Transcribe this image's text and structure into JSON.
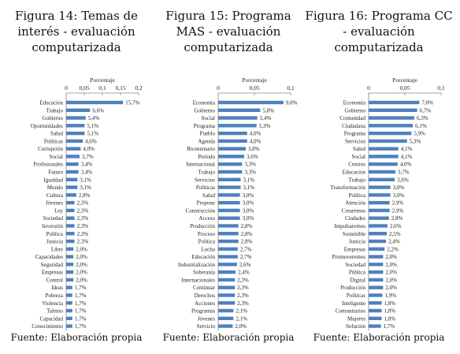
{
  "figures": [
    {
      "title": "Figura 14: Temas de interés - evaluación computarizada",
      "source": "Fuente: Elaboración propia",
      "chart_data": {
        "type": "bar",
        "orientation": "horizontal",
        "xlabel": "Porcentaje",
        "xlim": [
          0,
          0.2
        ],
        "xticks": [
          "0",
          "0,05",
          "0,1",
          "0,15",
          "0,2"
        ],
        "bar_color": "#4f81bd",
        "grid": false,
        "categories": [
          "Educación",
          "Trabajo",
          "Gobierno",
          "Oportunidades",
          "Salud",
          "Políticas",
          "Corrupción",
          "Social",
          "Profesionales",
          "Futuro",
          "Igualdad",
          "Mundo",
          "Cultura",
          "Jóvenes",
          "Ley",
          "Sociedad",
          "Inversión",
          "Política",
          "Justicia",
          "Libre",
          "Capacidades",
          "Seguridad",
          "Empresas",
          "Control",
          "Ideas",
          "Pobreza",
          "Violencia",
          "Talento",
          "Capacidad",
          "Conocimiento"
        ],
        "values": [
          0.157,
          0.066,
          0.054,
          0.051,
          0.051,
          0.046,
          0.04,
          0.037,
          0.034,
          0.034,
          0.031,
          0.031,
          0.028,
          0.023,
          0.023,
          0.023,
          0.023,
          0.023,
          0.023,
          0.02,
          0.02,
          0.02,
          0.02,
          0.02,
          0.017,
          0.017,
          0.017,
          0.017,
          0.017,
          0.017
        ],
        "labels": [
          "15,7%",
          "6,6%",
          "5,4%",
          "5,1%",
          "5,1%",
          "4,6%",
          "4,0%",
          "3,7%",
          "3,4%",
          "3,4%",
          "3,1%",
          "3,1%",
          "2,8%",
          "2,3%",
          "2,3%",
          "2,3%",
          "2,3%",
          "2,3%",
          "2,3%",
          "2,0%",
          "2,0%",
          "2,0%",
          "2,0%",
          "2,0%",
          "1,7%",
          "1,7%",
          "1,7%",
          "1,7%",
          "1,7%",
          "1,7%"
        ]
      }
    },
    {
      "title": "Figura 15: Programa MAS - evaluación computarizada",
      "source": "Fuente: Elaboración propia",
      "chart_data": {
        "type": "bar",
        "orientation": "horizontal",
        "xlabel": "Porcentaje",
        "xlim": [
          0,
          0.1
        ],
        "xticks": [
          "0",
          "0,05",
          "0,1"
        ],
        "bar_color": "#4f81bd",
        "grid": false,
        "categories": [
          "Economía",
          "Gobierno",
          "Social",
          "Programa",
          "Pueblo",
          "Agenda",
          "Bicentenario",
          "Período",
          "Internacional",
          "Trabajo",
          "Servicios",
          "Políticas",
          "Salud",
          "Propone",
          "Construcción",
          "Acceso",
          "Producción",
          "Proceso",
          "Política",
          "Lucha",
          "Educación",
          "Industrialización",
          "Soberanía",
          "Internacionales",
          "Continuar",
          "Derechos",
          "Acciones",
          "Programas",
          "Jóvenes",
          "Servicio"
        ],
        "values": [
          0.09,
          0.058,
          0.054,
          0.053,
          0.04,
          0.04,
          0.038,
          0.036,
          0.033,
          0.033,
          0.031,
          0.031,
          0.03,
          0.03,
          0.03,
          0.03,
          0.028,
          0.028,
          0.028,
          0.027,
          0.027,
          0.026,
          0.024,
          0.023,
          0.023,
          0.023,
          0.023,
          0.021,
          0.021,
          0.02
        ],
        "labels": [
          "9,0%",
          "5,8%",
          "5,4%",
          "5,3%",
          "4,0%",
          "4,0%",
          "3,8%",
          "3,6%",
          "3,3%",
          "3,3%",
          "3,1%",
          "3,1%",
          "3,0%",
          "3,0%",
          "3,0%",
          "3,0%",
          "2,8%",
          "2,8%",
          "2,8%",
          "2,7%",
          "2,7%",
          "2,6%",
          "2,4%",
          "2,3%",
          "2,3%",
          "2,3%",
          "2,3%",
          "2,1%",
          "2,1%",
          "2,0%"
        ]
      }
    },
    {
      "title": "Figura 16: Programa CC - evaluación computarizada",
      "source": "Fuente: Elaboración propia",
      "chart_data": {
        "type": "bar",
        "orientation": "horizontal",
        "xlabel": "Porcentaje",
        "xlim": [
          0,
          0.1
        ],
        "xticks": [
          "0",
          "0,05",
          "0,1"
        ],
        "bar_color": "#4f81bd",
        "grid": false,
        "categories": [
          "Economía",
          "Gobierno",
          "Comunidad",
          "Ciudadana",
          "Programa",
          "Servicios",
          "Salud",
          "Social",
          "Centros",
          "Educación",
          "Trabajo",
          "Transformación",
          "Política",
          "Atención",
          "Crearemos",
          "Ciudades",
          "Impulsaremos",
          "Sostenible",
          "Justicia",
          "Empresas",
          "Promoveremos",
          "Sociedad",
          "Pública",
          "Digital",
          "Producción",
          "Políticas",
          "Inteligente",
          "Comunitarios",
          "Mujeres",
          "Solución"
        ],
        "values": [
          0.07,
          0.067,
          0.063,
          0.061,
          0.059,
          0.053,
          0.041,
          0.041,
          0.04,
          0.037,
          0.036,
          0.03,
          0.03,
          0.029,
          0.029,
          0.028,
          0.026,
          0.025,
          0.024,
          0.022,
          0.02,
          0.02,
          0.02,
          0.02,
          0.02,
          0.019,
          0.018,
          0.018,
          0.018,
          0.017
        ],
        "labels": [
          "7,0%",
          "6,7%",
          "6,3%",
          "6,1%",
          "5,9%",
          "5,3%",
          "4,1%",
          "4,1%",
          "4,0%",
          "3,7%",
          "3,6%",
          "3,0%",
          "3,0%",
          "2,9%",
          "2,9%",
          "2,8%",
          "2,6%",
          "2,5%",
          "2,4%",
          "2,2%",
          "2,0%",
          "2,0%",
          "2,0%",
          "2,0%",
          "2,0%",
          "1,9%",
          "1,8%",
          "1,8%",
          "1,8%",
          "1,7%"
        ]
      }
    }
  ]
}
